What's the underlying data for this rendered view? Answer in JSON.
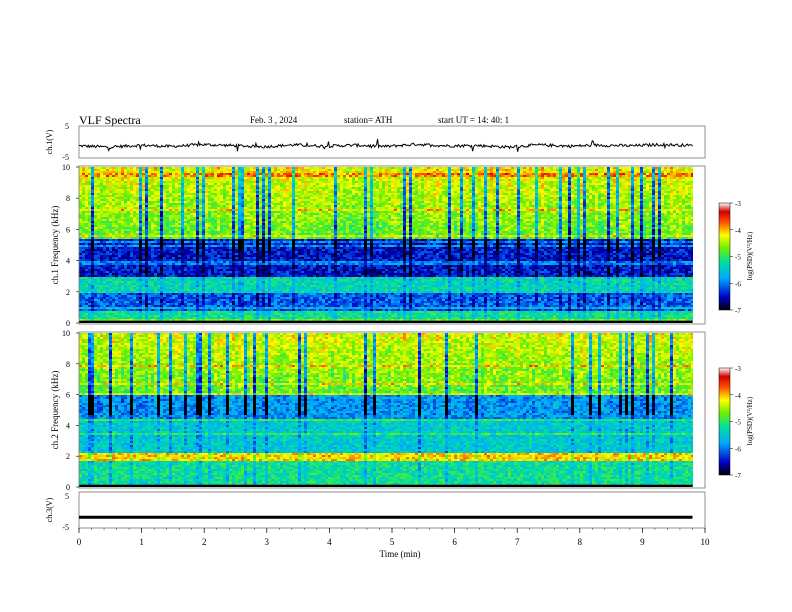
{
  "header": {
    "title": "VLF  Spectra",
    "date": "Feb. 3  , 2024",
    "station": "station= ATH",
    "start": "start  UT  =   14: 40: 1"
  },
  "chart_data": [
    {
      "type": "line",
      "panel": "ch1-waveform",
      "ylabel": "ch.1(V)",
      "ylim": [
        -5,
        5
      ],
      "yticks": [
        "5",
        "-5"
      ],
      "series": [
        {
          "values": [
            -1.2,
            -1.6,
            -1.0,
            -1.4,
            -0.8,
            -1.1,
            -1.5,
            -0.9,
            -1.3,
            -1.0,
            -1.4,
            -0.7,
            -1.2,
            -1.1,
            -1.6,
            -0.9,
            -1.3,
            -1.0,
            -1.2,
            -0.8,
            -1.1
          ]
        }
      ]
    },
    {
      "type": "heatmap",
      "panel": "ch1-spectrogram",
      "ylabel": "ch.1  Frequency  (kHz)",
      "yticks": [
        "0",
        "2",
        "4",
        "6",
        "8",
        "10"
      ],
      "ylim": [
        0,
        10
      ],
      "colorbar": {
        "label": "log(PSD)(V²/Hz)",
        "ticks": [
          "-3",
          "-4",
          "-5",
          "-6",
          "-7"
        ],
        "range": [
          -7,
          -3
        ]
      }
    },
    {
      "type": "heatmap",
      "panel": "ch2-spectrogram",
      "ylabel": "ch.2  Frequency  (kHz)",
      "yticks": [
        "0",
        "2",
        "4",
        "6",
        "8",
        "10"
      ],
      "ylim": [
        0,
        10
      ],
      "colorbar": {
        "label": "log(PSD)(V²/Hz)",
        "ticks": [
          "-3",
          "-4",
          "-5",
          "-6",
          "-7"
        ],
        "range": [
          -7,
          -3
        ]
      }
    },
    {
      "type": "line",
      "panel": "ch3-waveform",
      "ylabel": "ch.3(V)",
      "ylim": [
        -5,
        5
      ],
      "yticks": [
        "5",
        "-5"
      ],
      "series": [
        {
          "values": [
            -2.0,
            -2.0,
            -2.0,
            -2.0,
            -2.0,
            -2.0,
            -2.0,
            -2.0,
            -2.0,
            -2.0,
            -2.0
          ]
        }
      ]
    }
  ],
  "xaxis": {
    "label": "Time  (min)",
    "ticks": [
      "0",
      "1",
      "2",
      "3",
      "4",
      "5",
      "6",
      "7",
      "8",
      "9",
      "10"
    ],
    "xlim": [
      0,
      10
    ],
    "data_end": 9.8
  },
  "colors": {
    "ink": "#000000",
    "frame": "#777777",
    "colormap": [
      "#000000",
      "#0000c8",
      "#00aaff",
      "#00e0a0",
      "#70f000",
      "#ffff00",
      "#ff5000",
      "#d00000",
      "#ffffff"
    ]
  }
}
